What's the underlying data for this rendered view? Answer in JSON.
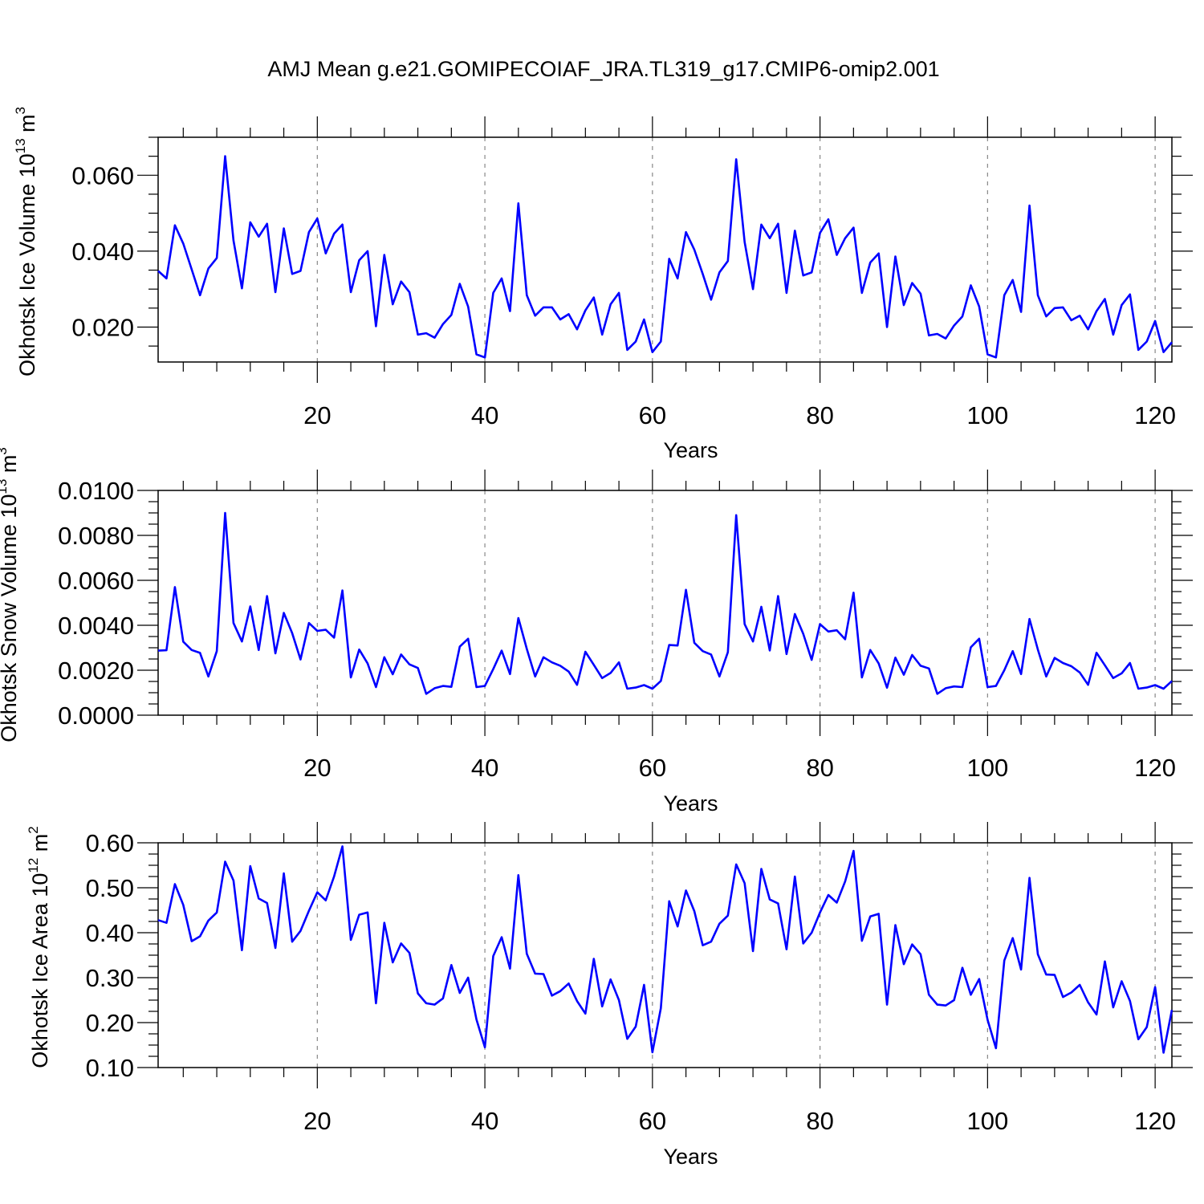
{
  "title": "AMJ Mean g.e21.GOMIPECOIAF_JRA.TL319_g17.CMIP6-omip2.001",
  "line_color": "#0000ff",
  "chart_data": [
    {
      "type": "line",
      "title": "",
      "xlabel": "Years",
      "ylabel_main": "Okhotsk Ice Volume 10",
      "ylabel_exp": "13",
      "ylabel_unit": " m",
      "ylabel_unit_exp": "3",
      "xlim": [
        1,
        122
      ],
      "ylim": [
        0.0108,
        0.07
      ],
      "x_ticks": [
        20,
        40,
        60,
        80,
        100,
        120
      ],
      "x_tick_labels": [
        "20",
        "40",
        "60",
        "80",
        "100",
        "120"
      ],
      "y_ticks": [
        0.02,
        0.04,
        0.06
      ],
      "y_tick_labels": [
        "0.020",
        "0.040",
        "0.060"
      ],
      "y_minor_step": 0.005,
      "x_minor_step": 4,
      "vgrid": [
        20,
        40,
        60,
        80,
        100,
        120
      ],
      "series": [
        {
          "values": [
            0.0348,
            0.0328,
            0.0468,
            0.042,
            0.0352,
            0.0284,
            0.0354,
            0.0382,
            0.065,
            0.0428,
            0.0302,
            0.0476,
            0.0438,
            0.0472,
            0.0292,
            0.046,
            0.034,
            0.0348,
            0.045,
            0.0486,
            0.0394,
            0.0446,
            0.047,
            0.0292,
            0.0376,
            0.04,
            0.0202,
            0.039,
            0.026,
            0.032,
            0.0292,
            0.018,
            0.0184,
            0.0172,
            0.0208,
            0.0232,
            0.0314,
            0.0254,
            0.0128,
            0.012,
            0.029,
            0.0328,
            0.0242,
            0.0526,
            0.0284,
            0.023,
            0.0252,
            0.0252,
            0.022,
            0.0234,
            0.0194,
            0.0244,
            0.0278,
            0.018,
            0.026,
            0.029,
            0.014,
            0.0162,
            0.022,
            0.0134,
            0.0162,
            0.038,
            0.0328,
            0.045,
            0.0404,
            0.034,
            0.0272,
            0.0344,
            0.0374,
            0.0642,
            0.0424,
            0.03,
            0.047,
            0.0434,
            0.0472,
            0.029,
            0.0454,
            0.0336,
            0.0344,
            0.0448,
            0.0484,
            0.039,
            0.0434,
            0.0462,
            0.029,
            0.037,
            0.0394,
            0.02,
            0.0386,
            0.0258,
            0.0316,
            0.0288,
            0.0178,
            0.0182,
            0.017,
            0.0204,
            0.0228,
            0.031,
            0.0254,
            0.0128,
            0.012,
            0.0284,
            0.0324,
            0.024,
            0.052,
            0.0284,
            0.0228,
            0.025,
            0.0252,
            0.0218,
            0.023,
            0.0194,
            0.0242,
            0.0274,
            0.018,
            0.0258,
            0.0286,
            0.014,
            0.0162,
            0.0216,
            0.0134,
            0.016
          ]
        }
      ]
    },
    {
      "type": "line",
      "title": "",
      "xlabel": "Years",
      "ylabel_main": "Okhotsk Snow Volume 10",
      "ylabel_exp": "13",
      "ylabel_unit": " m",
      "ylabel_unit_exp": "3",
      "xlim": [
        1,
        122
      ],
      "ylim": [
        0.0,
        0.01
      ],
      "x_ticks": [
        20,
        40,
        60,
        80,
        100,
        120
      ],
      "x_tick_labels": [
        "20",
        "40",
        "60",
        "80",
        "100",
        "120"
      ],
      "y_ticks": [
        0.0,
        0.002,
        0.004,
        0.006,
        0.008,
        0.01
      ],
      "y_tick_labels": [
        "0.0000",
        "0.0020",
        "0.0040",
        "0.0060",
        "0.0080",
        "0.0100"
      ],
      "y_minor_step": 0.0005,
      "x_minor_step": 4,
      "vgrid": [
        20,
        40,
        60,
        80,
        100,
        120
      ],
      "series": [
        {
          "values": [
            0.00287,
            0.00289,
            0.0057,
            0.00327,
            0.0029,
            0.00277,
            0.00172,
            0.00285,
            0.009,
            0.0041,
            0.00328,
            0.00484,
            0.0029,
            0.0053,
            0.00275,
            0.00455,
            0.00365,
            0.00248,
            0.0041,
            0.00375,
            0.0038,
            0.00345,
            0.00555,
            0.00168,
            0.00292,
            0.0023,
            0.00125,
            0.00258,
            0.00182,
            0.0027,
            0.00226,
            0.0021,
            0.00095,
            0.0012,
            0.0013,
            0.00126,
            0.00305,
            0.0034,
            0.00125,
            0.0013,
            0.00205,
            0.00287,
            0.00183,
            0.00432,
            0.00295,
            0.00172,
            0.00258,
            0.00235,
            0.0022,
            0.00194,
            0.00135,
            0.00282,
            0.00224,
            0.00165,
            0.00188,
            0.00235,
            0.00118,
            0.00123,
            0.00134,
            0.00118,
            0.00152,
            0.00312,
            0.0031,
            0.00558,
            0.00322,
            0.00285,
            0.0027,
            0.00172,
            0.0028,
            0.0089,
            0.00405,
            0.00328,
            0.00482,
            0.00288,
            0.0053,
            0.00272,
            0.0045,
            0.00362,
            0.00246,
            0.00405,
            0.00372,
            0.00378,
            0.00338,
            0.00545,
            0.00168,
            0.0029,
            0.0023,
            0.00122,
            0.00256,
            0.0018,
            0.00268,
            0.0022,
            0.00208,
            0.00095,
            0.0012,
            0.00128,
            0.00125,
            0.00302,
            0.0034,
            0.00125,
            0.0013,
            0.002,
            0.00285,
            0.00183,
            0.00428,
            0.00292,
            0.00172,
            0.00255,
            0.00232,
            0.00218,
            0.0019,
            0.00135,
            0.00278,
            0.00222,
            0.00165,
            0.00186,
            0.00232,
            0.00118,
            0.00123,
            0.00134,
            0.00118,
            0.00152
          ]
        }
      ]
    },
    {
      "type": "line",
      "title": "",
      "xlabel": "Years",
      "ylabel_main": "Okhotsk Ice Area 10",
      "ylabel_exp": "12",
      "ylabel_unit": " m",
      "ylabel_unit_exp": "2",
      "xlim": [
        1,
        122
      ],
      "ylim": [
        0.1,
        0.6
      ],
      "x_ticks": [
        20,
        40,
        60,
        80,
        100,
        120
      ],
      "x_tick_labels": [
        "20",
        "40",
        "60",
        "80",
        "100",
        "120"
      ],
      "y_ticks": [
        0.1,
        0.2,
        0.3,
        0.4,
        0.5,
        0.6
      ],
      "y_tick_labels": [
        "0.10",
        "0.20",
        "0.30",
        "0.40",
        "0.50",
        "0.60"
      ],
      "y_minor_step": 0.025,
      "x_minor_step": 4,
      "vgrid": [
        20,
        40,
        60,
        80,
        100,
        120
      ],
      "series": [
        {
          "values": [
            0.428,
            0.422,
            0.508,
            0.462,
            0.381,
            0.392,
            0.427,
            0.445,
            0.558,
            0.516,
            0.361,
            0.548,
            0.476,
            0.466,
            0.366,
            0.532,
            0.38,
            0.404,
            0.449,
            0.49,
            0.472,
            0.525,
            0.592,
            0.384,
            0.44,
            0.445,
            0.243,
            0.422,
            0.334,
            0.376,
            0.355,
            0.265,
            0.243,
            0.24,
            0.254,
            0.328,
            0.266,
            0.3,
            0.207,
            0.145,
            0.348,
            0.39,
            0.32,
            0.528,
            0.353,
            0.309,
            0.308,
            0.26,
            0.27,
            0.287,
            0.248,
            0.22,
            0.342,
            0.236,
            0.296,
            0.25,
            0.164,
            0.191,
            0.284,
            0.134,
            0.232,
            0.47,
            0.414,
            0.494,
            0.448,
            0.372,
            0.38,
            0.42,
            0.438,
            0.552,
            0.51,
            0.359,
            0.542,
            0.474,
            0.465,
            0.363,
            0.525,
            0.376,
            0.4,
            0.445,
            0.484,
            0.467,
            0.514,
            0.582,
            0.382,
            0.436,
            0.442,
            0.24,
            0.417,
            0.33,
            0.374,
            0.352,
            0.262,
            0.24,
            0.238,
            0.25,
            0.322,
            0.262,
            0.297,
            0.206,
            0.143,
            0.338,
            0.388,
            0.318,
            0.522,
            0.352,
            0.307,
            0.306,
            0.257,
            0.267,
            0.284,
            0.245,
            0.218,
            0.336,
            0.234,
            0.292,
            0.248,
            0.163,
            0.19,
            0.279,
            0.133,
            0.228
          ]
        }
      ]
    }
  ]
}
